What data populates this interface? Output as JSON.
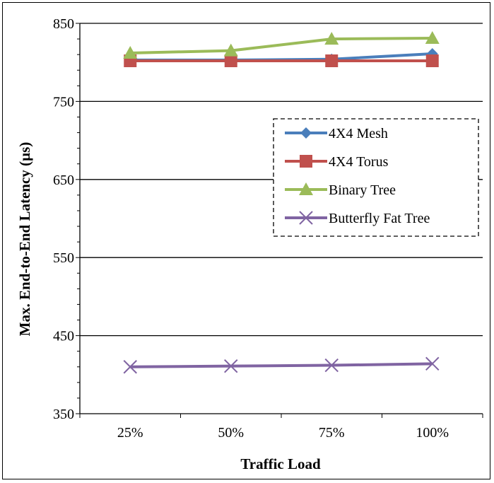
{
  "chart_data": {
    "type": "line",
    "categories": [
      "25%",
      "50%",
      "75%",
      "100%"
    ],
    "xlabel": "Traffic Load",
    "ylabel": "Max. End-to-End Latency (µs)",
    "ylim": [
      350,
      850
    ],
    "yticks": [
      350,
      450,
      550,
      650,
      750,
      850
    ],
    "grid": "horizontal major lines",
    "legend_position": "center-right",
    "series": [
      {
        "name": "4X4 Mesh",
        "color": "#4a7ebb",
        "marker": "diamond",
        "values": [
          803,
          803,
          804,
          811
        ]
      },
      {
        "name": "4X4 Torus",
        "color": "#c0504d",
        "marker": "square",
        "values": [
          802,
          802,
          802,
          802
        ]
      },
      {
        "name": "Binary Tree",
        "color": "#9bbb59",
        "marker": "triangle",
        "values": [
          812,
          815,
          830,
          831
        ]
      },
      {
        "name": "Butterfly Fat Tree",
        "color": "#8064a2",
        "marker": "x",
        "values": [
          410,
          411,
          412,
          414
        ]
      }
    ]
  }
}
